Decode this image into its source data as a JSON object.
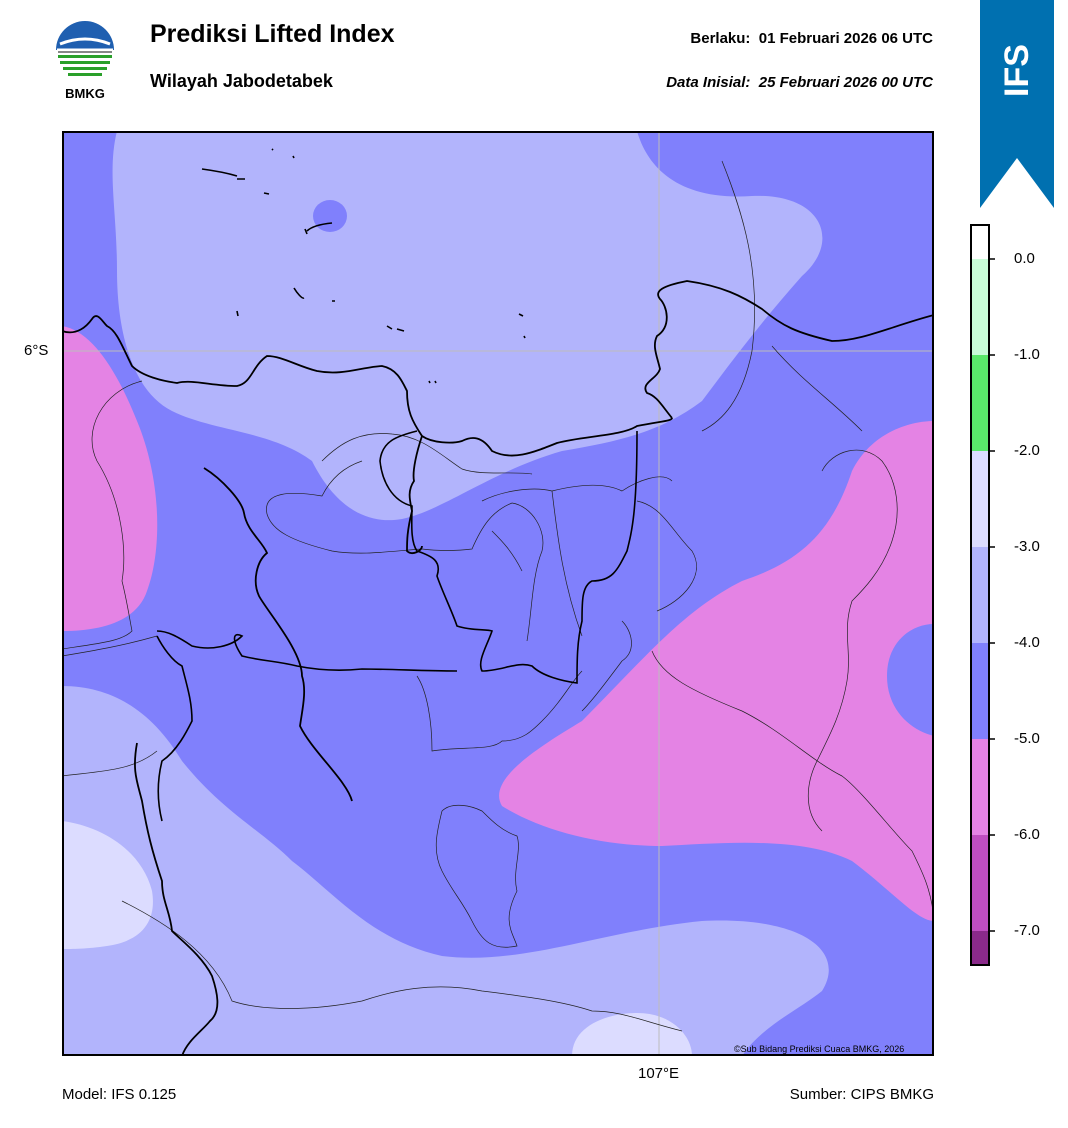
{
  "header": {
    "logo_text": "BMKG",
    "title": "Prediksi Lifted Index",
    "subtitle": "Wilayah Jabodetabek",
    "valid_label": "Berlaku:  01 Februari 2026 06 UTC",
    "init_label": "Data Inisial:  25 Februari 2026 00 UTC"
  },
  "badge": {
    "text": "IFS",
    "color": "#0070b0"
  },
  "map": {
    "lat_tick": "6°S",
    "lon_tick": "107°E",
    "copyright": "©Sub Bidang Prediksi Cuaca BMKG, 2026"
  },
  "footer": {
    "model": "Model: IFS 0.125",
    "source": "Sumber: CIPS BMKG"
  },
  "colorbar": {
    "ticks": [
      "0.0",
      "-1.0",
      "-2.0",
      "-3.0",
      "-4.0",
      "-5.0",
      "-6.0",
      "-7.0"
    ],
    "colors": {
      "above_0": "#ffffff",
      "0_to_-1": "#c8fcd8",
      "-1_to_-2": "#5ae86a",
      "-2_to_-3": "#dcdcff",
      "-3_to_-4": "#b2b4fc",
      "-4_to_-5": "#8080fc",
      "-5_to_-6": "#e483e4",
      "-6_to_-7": "#be4ec0",
      "below_-7": "#8a2a8a"
    }
  }
}
